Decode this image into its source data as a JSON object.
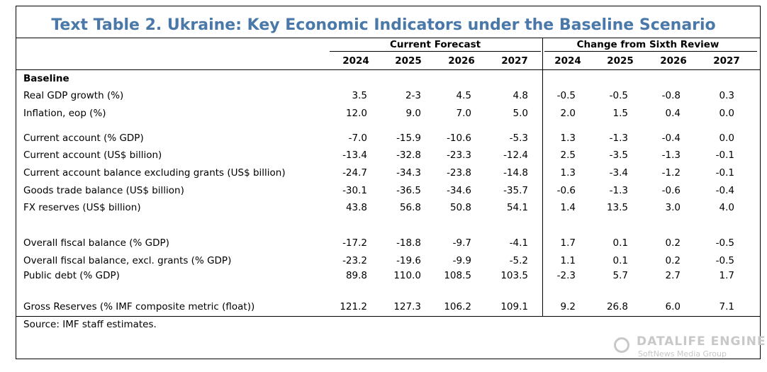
{
  "title": "Text Table 2. Ukraine: Key Economic Indicators under the Baseline Scenario",
  "column_groups": [
    "Current Forecast",
    "Change from Sixth Review"
  ],
  "years": [
    "2024",
    "2025",
    "2026",
    "2027",
    "2024",
    "2025",
    "2026",
    "2027"
  ],
  "section": "Baseline",
  "rows": [
    {
      "label": "Real GDP growth (%)",
      "values": [
        "3.5",
        "2-3",
        "4.5",
        "4.8",
        "-0.5",
        "-0.5",
        "-0.8",
        "0.3"
      ]
    },
    {
      "label": "Inflation, eop (%)",
      "values": [
        "12.0",
        "9.0",
        "7.0",
        "5.0",
        "2.0",
        "1.5",
        "0.4",
        "0.0"
      ]
    },
    {
      "label": "Current account (% GDP)",
      "values": [
        "-7.0",
        "-15.9",
        "-10.6",
        "-5.3",
        "1.3",
        "-1.3",
        "-0.4",
        "0.0"
      ]
    },
    {
      "label": "Current account (US$ billion)",
      "values": [
        "-13.4",
        "-32.8",
        "-23.3",
        "-12.4",
        "2.5",
        "-3.5",
        "-1.3",
        "-0.1"
      ]
    },
    {
      "label": "Current account balance excluding grants (US$ billion)",
      "values": [
        "-24.7",
        "-34.3",
        "-23.8",
        "-14.8",
        "1.3",
        "-3.4",
        "-1.2",
        "-0.1"
      ]
    },
    {
      "label": "Goods trade balance (US$ billion)",
      "values": [
        "-30.1",
        "-36.5",
        "-34.6",
        "-35.7",
        "-0.6",
        "-1.3",
        "-0.6",
        "-0.4"
      ]
    },
    {
      "label": "FX reserves (US$ billion)",
      "values": [
        "43.8",
        "56.8",
        "50.8",
        "54.1",
        "1.4",
        "13.5",
        "3.0",
        "4.0"
      ]
    },
    {
      "label": "Overall fiscal balance (% GDP)",
      "values": [
        "-17.2",
        "-18.8",
        "-9.7",
        "-4.1",
        "1.7",
        "0.1",
        "0.2",
        "-0.5"
      ]
    },
    {
      "label": "Overall fiscal balance, excl. grants (% GDP)",
      "values": [
        "-23.2",
        "-19.6",
        "-9.9",
        "-5.2",
        "1.1",
        "0.1",
        "0.2",
        "-0.5"
      ]
    },
    {
      "label": "Public debt (% GDP)",
      "values": [
        "89.8",
        "110.0",
        "108.5",
        "103.5",
        "-2.3",
        "5.7",
        "2.7",
        "1.7"
      ]
    },
    {
      "label": "Gross Reserves (% IMF composite metric (float))",
      "values": [
        "121.2",
        "127.3",
        "106.2",
        "109.1",
        "9.2",
        "26.8",
        "6.0",
        "7.1"
      ]
    }
  ],
  "source": "Source: IMF staff estimates.",
  "watermark": {
    "title": "DATALIFE ENGINE",
    "subtitle": "SoftNews Media Group"
  }
}
